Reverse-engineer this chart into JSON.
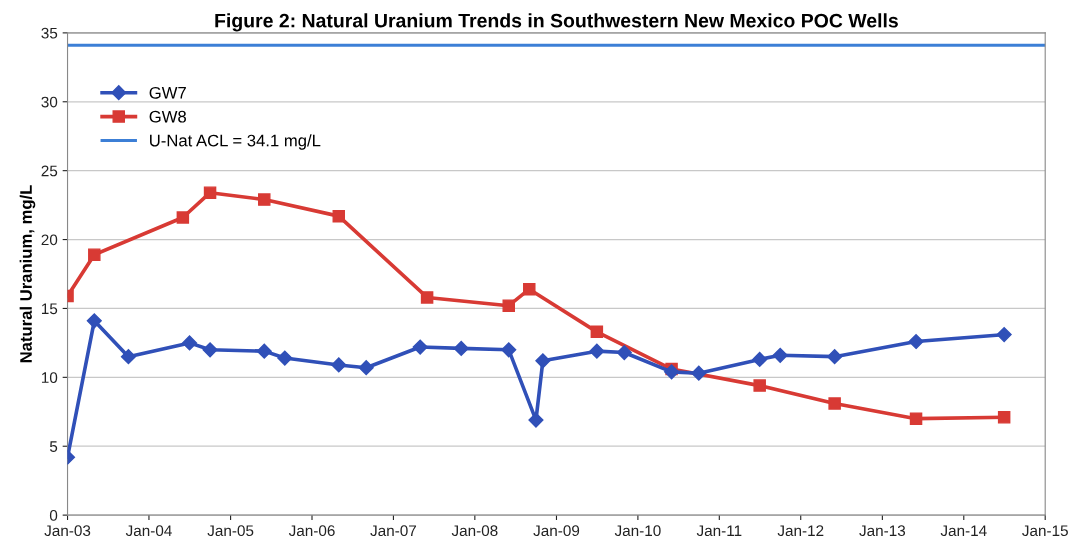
{
  "chart_data": {
    "type": "line",
    "title": "Figure 2: Natural Uranium Trends in Southwestern New Mexico POC Wells",
    "ylabel": "Natural Uranium, mg/L",
    "xlim": [
      "2003-01-01",
      "2015-01-01"
    ],
    "xticks": [
      {
        "value": "2003-01-01",
        "label": "Jan-03"
      },
      {
        "value": "2004-01-01",
        "label": "Jan-04"
      },
      {
        "value": "2005-01-01",
        "label": "Jan-05"
      },
      {
        "value": "2006-01-01",
        "label": "Jan-06"
      },
      {
        "value": "2007-01-01",
        "label": "Jan-07"
      },
      {
        "value": "2008-01-01",
        "label": "Jan-08"
      },
      {
        "value": "2009-01-01",
        "label": "Jan-09"
      },
      {
        "value": "2010-01-01",
        "label": "Jan-10"
      },
      {
        "value": "2011-01-01",
        "label": "Jan-11"
      },
      {
        "value": "2012-01-01",
        "label": "Jan-12"
      },
      {
        "value": "2013-01-01",
        "label": "Jan-13"
      },
      {
        "value": "2014-01-01",
        "label": "Jan-14"
      },
      {
        "value": "2015-01-01",
        "label": "Jan-15"
      }
    ],
    "ylim": [
      0,
      35
    ],
    "yticks": [
      0,
      5,
      10,
      15,
      20,
      25,
      30,
      35
    ],
    "grid": "y",
    "legend": "top left",
    "series": [
      {
        "name": "GW7",
        "color": "#3050b8",
        "marker": "diamond",
        "x": [
          "2003-01",
          "2003-05",
          "2003-10",
          "2004-07",
          "2004-10",
          "2005-06",
          "2005-09",
          "2006-05",
          "2006-09",
          "2007-05",
          "2007-11",
          "2008-06",
          "2008-10",
          "2008-11",
          "2009-07",
          "2009-11",
          "2010-06",
          "2010-10",
          "2011-07",
          "2011-10",
          "2012-06",
          "2013-06",
          "2014-07"
        ],
        "values": [
          4.2,
          14.1,
          11.5,
          12.5,
          12.0,
          11.9,
          11.4,
          10.9,
          10.7,
          12.2,
          12.1,
          12.0,
          6.9,
          11.2,
          11.9,
          11.8,
          10.4,
          10.3,
          11.3,
          11.6,
          11.5,
          12.6,
          13.1
        ]
      },
      {
        "name": "GW8",
        "color": "#d83a34",
        "marker": "square",
        "x": [
          "2003-01",
          "2003-05",
          "2004-06",
          "2004-10",
          "2005-06",
          "2006-05",
          "2007-06",
          "2008-06",
          "2008-09",
          "2009-07",
          "2010-06",
          "2011-07",
          "2012-06",
          "2013-06",
          "2014-07"
        ],
        "values": [
          15.9,
          18.9,
          21.6,
          23.4,
          22.9,
          21.7,
          15.8,
          15.2,
          16.4,
          13.3,
          10.6,
          9.4,
          8.1,
          7.0,
          7.1
        ]
      }
    ],
    "ref_lines": [
      {
        "axis": "y",
        "value": 34.1,
        "label": "U-Nat ACL = 34.1 mg/L",
        "color": "#3c7fd6",
        "line_style": "solid"
      }
    ]
  }
}
